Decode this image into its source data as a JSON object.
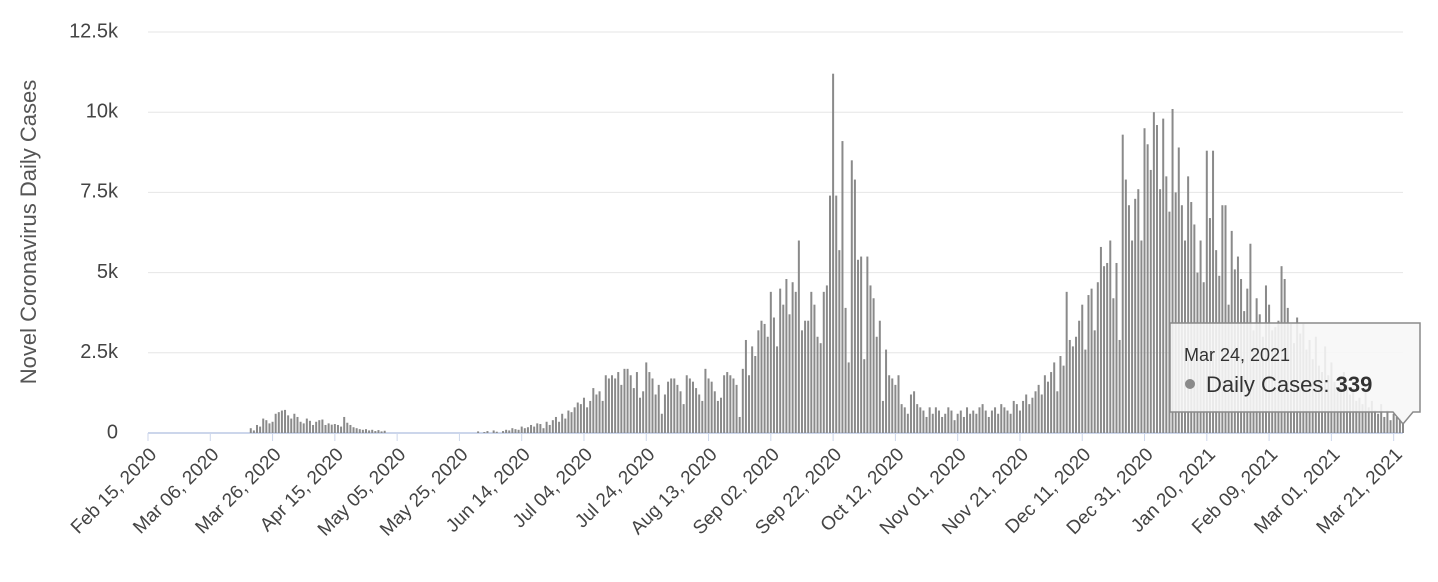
{
  "chart_data": {
    "type": "bar",
    "y_label": "Novel Coronavirus Daily Cases",
    "series": [
      {
        "name": "Daily Cases",
        "color": "#8a8a8a",
        "values": [
          0,
          0,
          0,
          0,
          0,
          0,
          0,
          0,
          0,
          0,
          0,
          0,
          0,
          0,
          0,
          0,
          0,
          0,
          0,
          0,
          0,
          0,
          0,
          0,
          0,
          0,
          0,
          0,
          0,
          0,
          0,
          0,
          0,
          150,
          80,
          250,
          200,
          450,
          400,
          300,
          350,
          600,
          650,
          700,
          720,
          550,
          450,
          600,
          500,
          350,
          300,
          450,
          380,
          250,
          350,
          400,
          420,
          250,
          300,
          260,
          280,
          250,
          200,
          500,
          320,
          250,
          180,
          150,
          120,
          100,
          120,
          80,
          100,
          60,
          90,
          50,
          70,
          0,
          0,
          0,
          0,
          0,
          0,
          0,
          0,
          0,
          0,
          0,
          0,
          0,
          0,
          0,
          0,
          0,
          0,
          0,
          0,
          0,
          0,
          0,
          0,
          0,
          0,
          0,
          0,
          0,
          50,
          0,
          30,
          60,
          0,
          80,
          40,
          0,
          60,
          100,
          80,
          150,
          120,
          100,
          200,
          150,
          180,
          250,
          200,
          300,
          280,
          150,
          350,
          250,
          400,
          500,
          350,
          600,
          450,
          700,
          650,
          800,
          950,
          900,
          1100,
          800,
          1000,
          1400,
          1200,
          1300,
          1000,
          1800,
          1700,
          1800,
          1700,
          1900,
          1500,
          2000,
          2000,
          1800,
          1400,
          1900,
          1100,
          1300,
          2200,
          1900,
          1700,
          1200,
          1500,
          600,
          1200,
          1600,
          1700,
          1700,
          1500,
          1300,
          900,
          1800,
          1700,
          1600,
          1400,
          1200,
          1000,
          2000,
          1700,
          1600,
          1300,
          1000,
          1100,
          1800,
          1900,
          1800,
          1700,
          1500,
          500,
          2000,
          2900,
          1800,
          2700,
          2400,
          3200,
          3500,
          3400,
          3000,
          4400,
          3600,
          2700,
          4500,
          4000,
          4800,
          3700,
          4700,
          4400,
          6000,
          3200,
          3500,
          3500,
          4400,
          4000,
          3000,
          2800,
          4400,
          4600,
          7400,
          11200,
          7400,
          5700,
          9100,
          3900,
          2200,
          8500,
          7900,
          5400,
          5500,
          2300,
          5500,
          4600,
          4200,
          3000,
          3500,
          1000,
          2600,
          1800,
          1700,
          1500,
          1800,
          900,
          800,
          600,
          1200,
          1300,
          900,
          800,
          700,
          500,
          800,
          600,
          800,
          700,
          500,
          600,
          800,
          700,
          400,
          600,
          700,
          500,
          800,
          600,
          700,
          600,
          800,
          900,
          700,
          500,
          700,
          800,
          600,
          900,
          800,
          700,
          600,
          1000,
          900,
          700,
          1000,
          1200,
          900,
          1100,
          1300,
          1500,
          1200,
          1800,
          1600,
          1900,
          2200,
          1300,
          2400,
          2100,
          4400,
          2900,
          2700,
          3000,
          3500,
          4000,
          2600,
          4300,
          4500,
          3200,
          4700,
          5800,
          5200,
          5300,
          6000,
          4200,
          5300,
          2900,
          9300,
          7900,
          7100,
          6000,
          7300,
          7600,
          6000,
          9500,
          9000,
          8200,
          10000,
          9600,
          7600,
          9800,
          8000,
          6900,
          10100,
          7500,
          8900,
          7100,
          6000,
          8000,
          7200,
          6500,
          5000,
          6000,
          4700,
          8800,
          6700,
          8800,
          5700,
          4900,
          7100,
          7100,
          4000,
          6300,
          5100,
          5500,
          4800,
          3800,
          4500,
          5900,
          3200,
          4200,
          3700,
          3000,
          4600,
          4000,
          3200,
          3300,
          3500,
          5200,
          4800,
          3900,
          3400,
          2800,
          3600,
          3100,
          3400,
          2600,
          2900,
          2300,
          3000,
          2100,
          1900,
          2700,
          1800,
          2200,
          1600,
          1300,
          1700,
          1900,
          1500,
          1200,
          1400,
          1000,
          1100,
          900,
          1300,
          800,
          1000,
          700,
          600,
          900,
          500,
          700,
          400,
          600,
          500,
          450,
          339
        ]
      }
    ],
    "categories": [
      "Feb 15, 2020",
      null,
      null,
      null,
      null,
      null,
      null,
      null,
      null,
      null,
      null,
      null,
      null,
      null,
      null,
      null,
      null,
      null,
      null,
      null,
      "Mar 06, 2020",
      null,
      null,
      null,
      null,
      null,
      null,
      null,
      null,
      null,
      null,
      null,
      null,
      null,
      null,
      null,
      null,
      null,
      null,
      null,
      "Mar 26, 2020",
      null,
      null,
      null,
      null,
      null,
      null,
      null,
      null,
      null,
      null,
      null,
      null,
      null,
      null,
      null,
      null,
      null,
      null,
      null,
      "Apr 15, 2020",
      null,
      null,
      null,
      null,
      null,
      null,
      null,
      null,
      null,
      null,
      null,
      null,
      null,
      null,
      null,
      null,
      null,
      null,
      null,
      "May 05, 2020",
      null,
      null,
      null,
      null,
      null,
      null,
      null,
      null,
      null,
      null,
      null,
      null,
      null,
      null,
      null,
      null,
      null,
      null,
      null,
      "May 25, 2020",
      null,
      null,
      null,
      null,
      null,
      null,
      null,
      null,
      null,
      null,
      null,
      null,
      null,
      null,
      null,
      null,
      null,
      null,
      null,
      "Jun 14, 2020",
      null,
      null,
      null,
      null,
      null,
      null,
      null,
      null,
      null,
      null,
      null,
      null,
      null,
      null,
      null,
      null,
      null,
      null,
      null,
      "Jul 04, 2020",
      null,
      null,
      null,
      null,
      null,
      null,
      null,
      null,
      null,
      null,
      null,
      null,
      null,
      null,
      null,
      null,
      null,
      null,
      null,
      "Jul 24, 2020",
      null,
      null,
      null,
      null,
      null,
      null,
      null,
      null,
      null,
      null,
      null,
      null,
      null,
      null,
      null,
      null,
      null,
      null,
      null,
      "Aug 13, 2020",
      null,
      null,
      null,
      null,
      null,
      null,
      null,
      null,
      null,
      null,
      null,
      null,
      null,
      null,
      null,
      null,
      null,
      null,
      null,
      "Sep 02, 2020",
      null,
      null,
      null,
      null,
      null,
      null,
      null,
      null,
      null,
      null,
      null,
      null,
      null,
      null,
      null,
      null,
      null,
      null,
      null,
      "Sep 22, 2020",
      null,
      null,
      null,
      null,
      null,
      null,
      null,
      null,
      null,
      null,
      null,
      null,
      null,
      null,
      null,
      null,
      null,
      null,
      null,
      "Oct 12, 2020",
      null,
      null,
      null,
      null,
      null,
      null,
      null,
      null,
      null,
      null,
      null,
      null,
      null,
      null,
      null,
      null,
      null,
      null,
      null,
      "Nov 01, 2020",
      null,
      null,
      null,
      null,
      null,
      null,
      null,
      null,
      null,
      null,
      null,
      null,
      null,
      null,
      null,
      null,
      null,
      null,
      null,
      "Nov 21, 2020",
      null,
      null,
      null,
      null,
      null,
      null,
      null,
      null,
      null,
      null,
      null,
      null,
      null,
      null,
      null,
      null,
      null,
      null,
      null,
      "Dec 11, 2020",
      null,
      null,
      null,
      null,
      null,
      null,
      null,
      null,
      null,
      null,
      null,
      null,
      null,
      null,
      null,
      null,
      null,
      null,
      null,
      "Dec 31, 2020",
      null,
      null,
      null,
      null,
      null,
      null,
      null,
      null,
      null,
      null,
      null,
      null,
      null,
      null,
      null,
      null,
      null,
      null,
      null,
      "Jan 20, 2021",
      null,
      null,
      null,
      null,
      null,
      null,
      null,
      null,
      null,
      null,
      null,
      null,
      null,
      null,
      null,
      null,
      null,
      null,
      null,
      "Feb 09, 2021",
      null,
      null,
      null,
      null,
      null,
      null,
      null,
      null,
      null,
      null,
      null,
      null,
      null,
      null,
      null,
      null,
      null,
      null,
      null,
      "Mar 01, 2021",
      null,
      null,
      null,
      null,
      null,
      null,
      null,
      null,
      null,
      null,
      null,
      null,
      null,
      null,
      null,
      null,
      null,
      null,
      null,
      "Mar 21, 2021",
      null,
      null,
      null
    ],
    "ylim": [
      0,
      12500
    ],
    "yticks": [
      0,
      {
        "value": 2500,
        "label": "2.5k"
      },
      {
        "value": 5000,
        "label": "5k"
      },
      {
        "value": 7500,
        "label": "7.5k"
      },
      {
        "value": 10000,
        "label": "10k"
      },
      {
        "value": 12500,
        "label": "12.5k"
      }
    ],
    "grid": true,
    "tooltip": {
      "date": "Mar 24, 2021",
      "series": "Daily Cases",
      "value": 339
    }
  }
}
